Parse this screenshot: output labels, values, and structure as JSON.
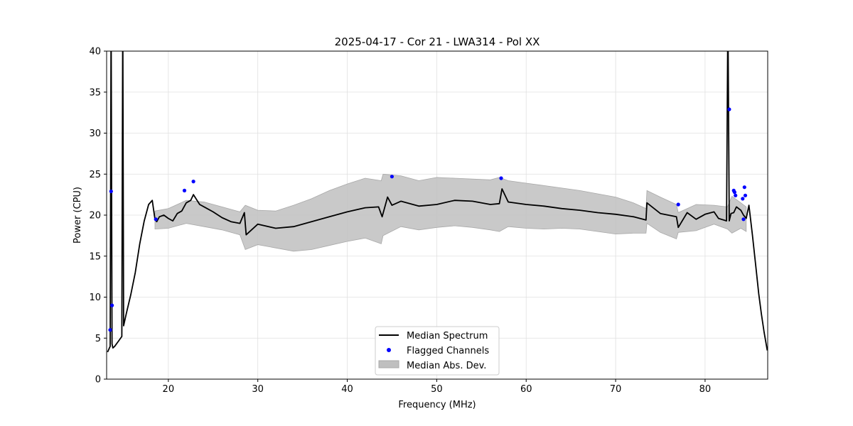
{
  "chart_data": {
    "type": "line",
    "title": "2025-04-17 - Cor 21 - LWA314 - Pol XX",
    "xlabel": "Frequency (MHz)",
    "ylabel": "Power (CPU)",
    "xlim": [
      13.1,
      87.0
    ],
    "ylim": [
      0,
      40
    ],
    "grid": true,
    "xticks": [
      20,
      30,
      40,
      50,
      60,
      70,
      80
    ],
    "xtick_labels": [
      "20",
      "30",
      "40",
      "50",
      "60",
      "70",
      "80"
    ],
    "yticks": [
      0,
      5,
      10,
      15,
      20,
      25,
      30,
      35,
      40
    ],
    "ytick_labels": [
      "0",
      "5",
      "10",
      "15",
      "20",
      "25",
      "30",
      "35",
      "40"
    ],
    "legend": {
      "location": "lower-center",
      "entries": [
        "Median Spectrum",
        "Flagged Channels",
        "Median Abs. Dev."
      ]
    },
    "series": [
      {
        "name": "Median Spectrum",
        "color": "#000000",
        "x": [
          13.2,
          13.5,
          13.6,
          13.7,
          13.8,
          14.0,
          14.4,
          14.8,
          14.9,
          15.0,
          15.3,
          15.8,
          16.3,
          16.8,
          17.3,
          17.8,
          18.2,
          18.5,
          18.7,
          19.0,
          19.5,
          20.0,
          20.5,
          21.0,
          21.5,
          22.0,
          22.5,
          22.8,
          23.5,
          24.0,
          25.0,
          26.0,
          27.0,
          28.0,
          28.5,
          28.7,
          30.0,
          32.0,
          34.0,
          36.0,
          38.0,
          40.0,
          42.0,
          43.5,
          43.9,
          44.5,
          45.0,
          46.0,
          48.0,
          50.0,
          52.0,
          54.0,
          56.0,
          57.0,
          57.3,
          58.0,
          60.0,
          62.0,
          64.0,
          66.0,
          68.0,
          70.0,
          72.0,
          73.4,
          73.5,
          75.0,
          76.8,
          77.0,
          78.0,
          79.0,
          80.0,
          81.0,
          81.5,
          82.4,
          82.55,
          82.7,
          82.9,
          83.2,
          83.5,
          84.0,
          84.3,
          84.6,
          84.9,
          85.3,
          85.7,
          86.0,
          86.3,
          86.6,
          86.95
        ],
        "y": [
          3.3,
          4.0,
          45.0,
          4.3,
          3.8,
          4.0,
          4.6,
          5.2,
          45.0,
          6.5,
          8.0,
          10.3,
          13.0,
          16.5,
          19.3,
          21.3,
          21.8,
          19.5,
          19.2,
          19.8,
          20.0,
          19.6,
          19.3,
          20.2,
          20.5,
          21.5,
          21.8,
          22.5,
          21.3,
          21.0,
          20.4,
          19.7,
          19.2,
          19.0,
          20.3,
          17.6,
          18.9,
          18.4,
          18.6,
          19.2,
          19.8,
          20.4,
          20.9,
          21.0,
          19.8,
          22.2,
          21.2,
          21.7,
          21.1,
          21.3,
          21.8,
          21.7,
          21.3,
          21.4,
          23.2,
          21.6,
          21.3,
          21.1,
          20.8,
          20.6,
          20.3,
          20.1,
          19.8,
          19.4,
          21.5,
          20.2,
          19.8,
          18.5,
          20.3,
          19.5,
          20.1,
          20.4,
          19.6,
          19.3,
          45.0,
          19.3,
          20.2,
          20.3,
          21.0,
          20.6,
          20.0,
          19.6,
          21.2,
          17.5,
          13.5,
          10.4,
          7.9,
          5.7,
          3.5
        ]
      },
      {
        "name": "Flagged Channels",
        "color": "#0000ff",
        "x": [
          13.5,
          13.6,
          13.7,
          18.6,
          21.8,
          22.8,
          45.0,
          57.2,
          77.0,
          82.7,
          83.2,
          83.3,
          83.4,
          84.2,
          84.3,
          84.4,
          84.5
        ],
        "y": [
          6.0,
          22.9,
          9.0,
          19.5,
          23.0,
          24.1,
          24.7,
          24.5,
          21.3,
          32.9,
          23.0,
          22.8,
          22.4,
          22.0,
          19.5,
          23.4,
          22.4
        ]
      },
      {
        "name": "Median Abs. Dev.",
        "color": "#bfbfbf",
        "x": [
          18.5,
          20.0,
          22.0,
          24.0,
          26.0,
          28.0,
          28.6,
          30.0,
          32.0,
          34.0,
          36.0,
          38.0,
          40.0,
          42.0,
          43.8,
          44.0,
          46.0,
          48.0,
          50.0,
          52.0,
          54.0,
          56.0,
          57.0,
          58.0,
          60.0,
          62.0,
          64.0,
          66.0,
          68.0,
          70.0,
          72.0,
          73.4,
          73.5,
          75.0,
          76.8,
          77.0,
          79.0,
          81.0,
          82.5,
          83.0,
          84.0,
          84.6
        ],
        "upper": [
          20.5,
          20.8,
          21.8,
          21.6,
          21.0,
          20.4,
          21.2,
          20.6,
          20.5,
          21.2,
          22.0,
          23.0,
          23.8,
          24.5,
          24.2,
          25.0,
          24.8,
          24.2,
          24.6,
          24.5,
          24.4,
          24.3,
          24.6,
          24.2,
          23.9,
          23.6,
          23.3,
          23.0,
          22.6,
          22.2,
          21.5,
          20.8,
          23.0,
          22.2,
          21.3,
          20.3,
          21.3,
          21.2,
          21.0,
          22.3,
          21.5,
          21.0
        ],
        "lower": [
          18.3,
          18.4,
          19.0,
          18.6,
          18.2,
          17.6,
          15.8,
          16.4,
          16.0,
          15.6,
          15.8,
          16.3,
          16.8,
          17.2,
          16.5,
          17.5,
          18.6,
          18.2,
          18.5,
          18.7,
          18.5,
          18.2,
          18.0,
          18.6,
          18.4,
          18.3,
          18.4,
          18.3,
          18.0,
          17.7,
          17.8,
          17.8,
          19.0,
          17.9,
          17.1,
          17.9,
          18.1,
          18.9,
          18.3,
          17.8,
          18.4,
          18.0
        ]
      }
    ]
  }
}
